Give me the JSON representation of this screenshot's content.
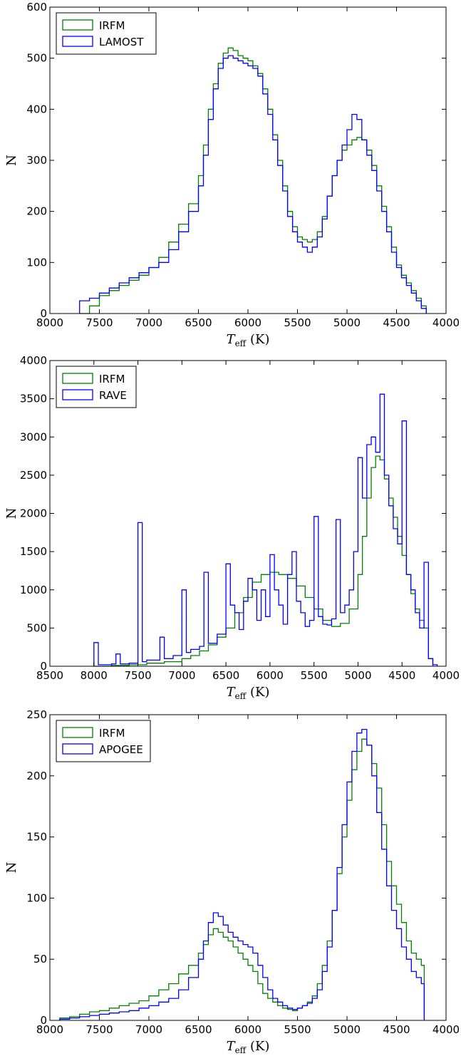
{
  "chart_data": [
    {
      "type": "histogram",
      "xlabel": "T_eff (K)",
      "ylabel": "N",
      "xlim": [
        8000,
        4000
      ],
      "ylim": [
        0,
        600
      ],
      "xticks": [
        8000,
        7500,
        7000,
        6500,
        6000,
        5500,
        5000,
        4500,
        4000
      ],
      "yticks": [
        0,
        100,
        200,
        300,
        400,
        500,
        600
      ],
      "legend_position": "top-left",
      "series": [
        {
          "name": "IRFM",
          "color": "#008000",
          "x": [
            7700,
            7600,
            7500,
            7400,
            7300,
            7200,
            7100,
            7000,
            6900,
            6800,
            6700,
            6600,
            6500,
            6450,
            6400,
            6350,
            6300,
            6250,
            6200,
            6150,
            6100,
            6050,
            6000,
            5950,
            5900,
            5850,
            5800,
            5750,
            5700,
            5650,
            5600,
            5550,
            5500,
            5450,
            5400,
            5350,
            5300,
            5250,
            5200,
            5150,
            5100,
            5050,
            5000,
            4950,
            4900,
            4850,
            4800,
            4750,
            4700,
            4650,
            4600,
            4550,
            4500,
            4450,
            4400,
            4350,
            4300,
            4250,
            4200
          ],
          "y": [
            0,
            15,
            35,
            45,
            55,
            65,
            75,
            90,
            110,
            140,
            175,
            215,
            270,
            330,
            400,
            450,
            490,
            510,
            520,
            515,
            505,
            500,
            495,
            485,
            470,
            440,
            400,
            350,
            300,
            250,
            200,
            170,
            150,
            145,
            140,
            145,
            160,
            190,
            230,
            270,
            300,
            320,
            330,
            340,
            345,
            340,
            320,
            290,
            250,
            210,
            170,
            130,
            95,
            75,
            60,
            45,
            30,
            15,
            0
          ]
        },
        {
          "name": "LAMOST",
          "color": "#0000ff",
          "x": [
            7700,
            7600,
            7500,
            7400,
            7300,
            7200,
            7100,
            7000,
            6900,
            6800,
            6700,
            6600,
            6500,
            6450,
            6400,
            6350,
            6300,
            6250,
            6200,
            6150,
            6100,
            6050,
            6000,
            5950,
            5900,
            5850,
            5800,
            5750,
            5700,
            5650,
            5600,
            5550,
            5500,
            5450,
            5400,
            5350,
            5300,
            5250,
            5200,
            5150,
            5100,
            5050,
            5000,
            4950,
            4900,
            4850,
            4800,
            4750,
            4700,
            4650,
            4600,
            4550,
            4500,
            4450,
            4400,
            4350,
            4300,
            4250,
            4200
          ],
          "y": [
            25,
            30,
            40,
            50,
            60,
            70,
            80,
            90,
            100,
            125,
            160,
            200,
            250,
            310,
            380,
            440,
            480,
            500,
            505,
            500,
            495,
            490,
            485,
            480,
            465,
            430,
            390,
            340,
            290,
            240,
            190,
            160,
            140,
            130,
            120,
            130,
            150,
            185,
            230,
            270,
            300,
            330,
            360,
            390,
            380,
            340,
            310,
            280,
            240,
            200,
            160,
            120,
            90,
            70,
            55,
            40,
            25,
            10,
            0
          ]
        }
      ]
    },
    {
      "type": "histogram",
      "xlabel": "T_eff (K)",
      "ylabel": "N",
      "xlim": [
        8500,
        4000
      ],
      "ylim": [
        0,
        4000
      ],
      "xticks": [
        8500,
        8000,
        7500,
        7000,
        6500,
        6000,
        5500,
        5000,
        4500,
        4000
      ],
      "yticks": [
        0,
        500,
        1000,
        1500,
        2000,
        2500,
        3000,
        3500,
        4000
      ],
      "legend_position": "top-left",
      "series": [
        {
          "name": "IRFM",
          "color": "#008000",
          "x": [
            8000,
            7800,
            7600,
            7400,
            7200,
            7000,
            6900,
            6800,
            6700,
            6600,
            6500,
            6400,
            6300,
            6200,
            6100,
            6000,
            5900,
            5800,
            5700,
            5600,
            5500,
            5400,
            5300,
            5200,
            5100,
            5000,
            4950,
            4900,
            4850,
            4800,
            4750,
            4700,
            4650,
            4600,
            4550,
            4500,
            4450,
            4400,
            4350,
            4300,
            4250,
            4200,
            4150
          ],
          "y": [
            0,
            10,
            20,
            40,
            60,
            100,
            140,
            200,
            280,
            380,
            500,
            700,
            900,
            1100,
            1200,
            1230,
            1200,
            1150,
            1050,
            900,
            750,
            600,
            520,
            560,
            750,
            1200,
            1700,
            2200,
            2600,
            2750,
            2700,
            2450,
            2200,
            1950,
            1700,
            1450,
            1200,
            950,
            750,
            600,
            500,
            100,
            0
          ]
        },
        {
          "name": "RAVE",
          "color": "#0000ff",
          "x": [
            8000,
            7950,
            7800,
            7750,
            7700,
            7600,
            7500,
            7450,
            7400,
            7250,
            7200,
            7100,
            7000,
            6950,
            6900,
            6800,
            6750,
            6700,
            6600,
            6500,
            6450,
            6400,
            6350,
            6300,
            6250,
            6200,
            6150,
            6100,
            6050,
            6000,
            5950,
            5900,
            5850,
            5800,
            5750,
            5700,
            5650,
            5600,
            5550,
            5500,
            5450,
            5400,
            5350,
            5300,
            5250,
            5200,
            5150,
            5100,
            5050,
            5000,
            4950,
            4900,
            4850,
            4800,
            4750,
            4700,
            4650,
            4600,
            4550,
            4500,
            4450,
            4400,
            4350,
            4300,
            4250,
            4200,
            4150,
            4100
          ],
          "y": [
            310,
            20,
            30,
            160,
            30,
            40,
            1880,
            60,
            80,
            380,
            100,
            140,
            1000,
            180,
            220,
            260,
            1230,
            300,
            420,
            1340,
            800,
            700,
            480,
            850,
            1150,
            1000,
            600,
            1000,
            650,
            1460,
            1000,
            800,
            550,
            1200,
            1500,
            850,
            700,
            520,
            600,
            1960,
            650,
            550,
            540,
            620,
            1920,
            700,
            800,
            1000,
            1500,
            2730,
            2200,
            2900,
            3000,
            2800,
            3560,
            2500,
            2100,
            1800,
            1600,
            3210,
            1200,
            1000,
            700,
            500,
            1360,
            100,
            20,
            0
          ]
        }
      ]
    },
    {
      "type": "histogram",
      "xlabel": "T_eff (K)",
      "ylabel": "N",
      "xlim": [
        8000,
        4000
      ],
      "ylim": [
        0,
        250
      ],
      "xticks": [
        8000,
        7500,
        7000,
        6500,
        6000,
        5500,
        5000,
        4500,
        4000
      ],
      "yticks": [
        0,
        50,
        100,
        150,
        200,
        250
      ],
      "legend_position": "top-left",
      "series": [
        {
          "name": "IRFM",
          "color": "#008000",
          "x": [
            7900,
            7800,
            7700,
            7600,
            7500,
            7400,
            7300,
            7200,
            7100,
            7000,
            6900,
            6800,
            6700,
            6600,
            6500,
            6450,
            6400,
            6350,
            6300,
            6250,
            6200,
            6150,
            6100,
            6050,
            6000,
            5950,
            5900,
            5850,
            5800,
            5750,
            5700,
            5650,
            5600,
            5550,
            5500,
            5450,
            5400,
            5350,
            5300,
            5250,
            5200,
            5150,
            5100,
            5050,
            5000,
            4950,
            4900,
            4850,
            4800,
            4750,
            4700,
            4650,
            4600,
            4550,
            4500,
            4450,
            4400,
            4350,
            4300,
            4250,
            4220
          ],
          "y": [
            2,
            3,
            5,
            7,
            8,
            10,
            12,
            14,
            16,
            20,
            25,
            30,
            38,
            45,
            55,
            62,
            70,
            75,
            72,
            68,
            65,
            60,
            55,
            50,
            45,
            40,
            30,
            22,
            18,
            15,
            12,
            10,
            9,
            8,
            10,
            12,
            15,
            20,
            30,
            45,
            65,
            90,
            120,
            150,
            180,
            205,
            220,
            230,
            225,
            210,
            190,
            160,
            130,
            110,
            95,
            80,
            65,
            55,
            50,
            45,
            20
          ]
        },
        {
          "name": "APOGEE",
          "color": "#0000ff",
          "x": [
            7900,
            7800,
            7700,
            7600,
            7500,
            7400,
            7300,
            7200,
            7100,
            7000,
            6900,
            6800,
            6700,
            6600,
            6500,
            6450,
            6400,
            6350,
            6300,
            6250,
            6200,
            6150,
            6100,
            6050,
            6000,
            5950,
            5900,
            5850,
            5800,
            5750,
            5700,
            5650,
            5600,
            5550,
            5500,
            5450,
            5400,
            5350,
            5300,
            5250,
            5200,
            5150,
            5100,
            5050,
            5000,
            4950,
            4900,
            4850,
            4800,
            4750,
            4700,
            4650,
            4600,
            4550,
            4500,
            4450,
            4400,
            4350,
            4300,
            4250,
            4220
          ],
          "y": [
            1,
            2,
            3,
            4,
            5,
            6,
            7,
            8,
            10,
            12,
            15,
            18,
            25,
            35,
            50,
            65,
            80,
            88,
            85,
            78,
            72,
            68,
            65,
            62,
            60,
            55,
            45,
            35,
            25,
            18,
            15,
            12,
            10,
            9,
            10,
            12,
            14,
            18,
            25,
            40,
            60,
            90,
            125,
            160,
            195,
            220,
            235,
            238,
            225,
            200,
            170,
            140,
            110,
            90,
            75,
            60,
            50,
            40,
            35,
            30,
            5
          ]
        }
      ]
    }
  ]
}
